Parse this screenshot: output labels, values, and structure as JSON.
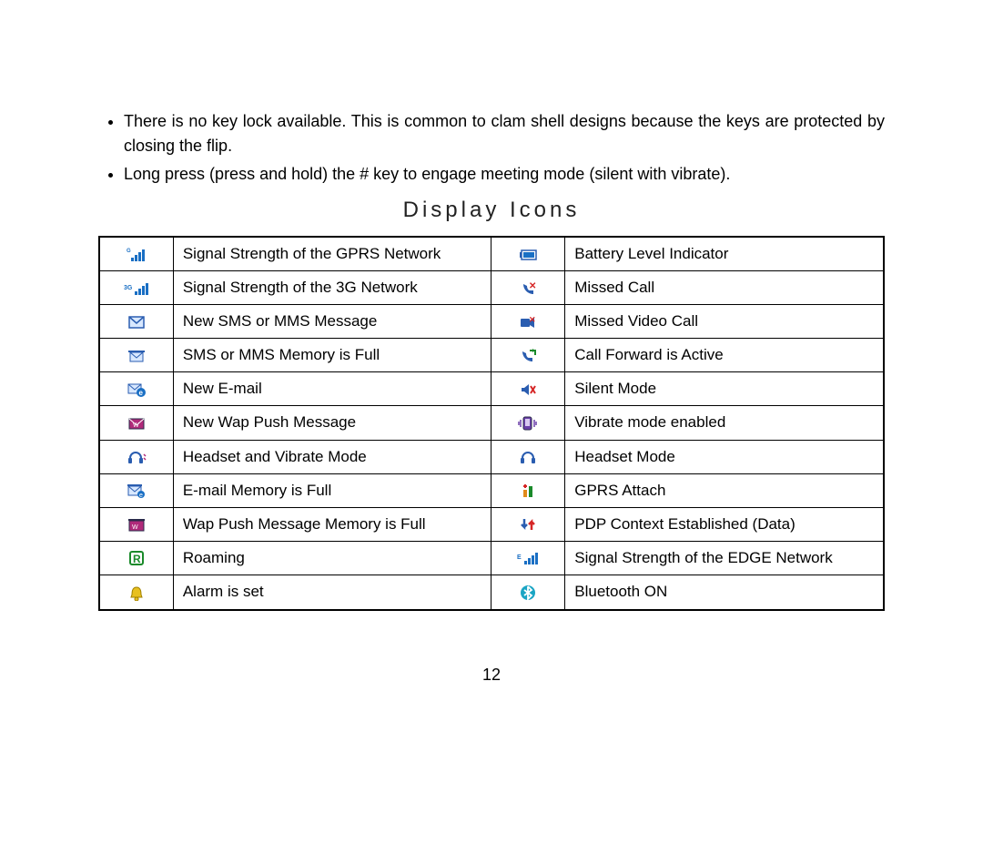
{
  "bullets": [
    "There is no key lock available. This is common to clam shell designs because the keys are protected by closing the flip.",
    "Long press (press and hold) the # key to engage meeting mode (silent with vibrate)."
  ],
  "section_title": "Display Icons",
  "table": {
    "rows": [
      {
        "left_icon": "signal-gprs-icon",
        "left_desc": "Signal Strength of the GPRS Network",
        "left_justify": true,
        "right_icon": "battery-icon",
        "right_desc": "Battery Level Indicator"
      },
      {
        "left_icon": "signal-3g-icon",
        "left_desc": "Signal Strength of the 3G Network",
        "right_icon": "missed-call-icon",
        "right_desc": "Missed Call"
      },
      {
        "left_icon": "new-sms-icon",
        "left_desc": "New SMS or MMS Message",
        "right_icon": "missed-video-icon",
        "right_desc": "Missed Video Call"
      },
      {
        "left_icon": "sms-full-icon",
        "left_desc": "SMS or MMS Memory is Full",
        "right_icon": "call-forward-icon",
        "right_desc": "Call Forward is Active"
      },
      {
        "left_icon": "new-email-icon",
        "left_desc": "New E-mail",
        "right_icon": "silent-mode-icon",
        "right_desc": "Silent Mode"
      },
      {
        "left_icon": "wap-push-icon",
        "left_desc": "New Wap Push Message",
        "right_icon": "vibrate-icon",
        "right_desc": "Vibrate mode enabled"
      },
      {
        "left_icon": "headset-vibrate-icon",
        "left_desc": "Headset and Vibrate Mode",
        "right_icon": "headset-icon",
        "right_desc": "Headset Mode"
      },
      {
        "left_icon": "email-full-icon",
        "left_desc": "E-mail Memory is Full",
        "right_icon": "gprs-attach-icon",
        "right_desc": "GPRS Attach"
      },
      {
        "left_icon": "wap-full-icon",
        "left_desc": "Wap Push Message Memory is Full",
        "right_icon": "pdp-context-icon",
        "right_desc": "PDP Context Established (Data)"
      },
      {
        "left_icon": "roaming-icon",
        "left_desc": "Roaming",
        "right_icon": "signal-edge-icon",
        "right_desc": "Signal Strength of the EDGE Network"
      },
      {
        "left_icon": "alarm-icon",
        "left_desc": "Alarm is set",
        "right_icon": "bluetooth-icon",
        "right_desc": "Bluetooth ON"
      }
    ]
  },
  "page_number": "12",
  "colors": {
    "blue": "#2a5db0",
    "cyan": "#1a6fc4",
    "red": "#d62626",
    "orange": "#e08a1a",
    "green": "#1a8a2a",
    "magenta": "#b02a7a",
    "yellow": "#e8c020",
    "purple": "#6a3fa8",
    "teal": "#1aa5c4",
    "dark": "#2a2a4a"
  }
}
